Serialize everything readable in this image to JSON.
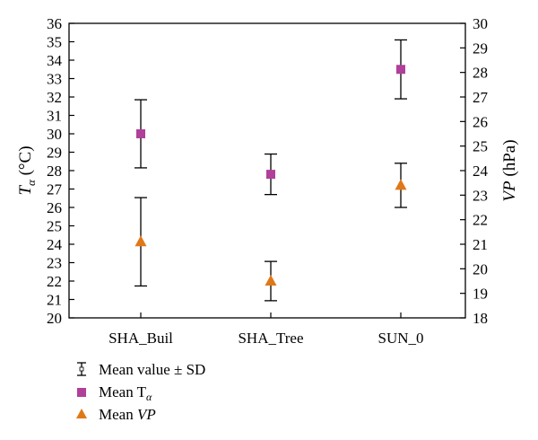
{
  "chart_data": {
    "type": "scatter",
    "categories": [
      "SHA_Buil",
      "SHA_Tree",
      "SUN_0"
    ],
    "left_axis": {
      "label_var": "T",
      "label_sub": "α",
      "label_unit": " (°C)",
      "min": 20,
      "max": 36,
      "step": 1
    },
    "right_axis": {
      "label_var": "VP",
      "label_unit": " (hPa)",
      "min": 18,
      "max": 30,
      "step": 1
    },
    "series": [
      {
        "name": "Mean T",
        "name_sub": "α",
        "axis": "left",
        "marker": "square",
        "color": "#b0409a",
        "values": [
          30.0,
          27.8,
          33.5
        ],
        "sd": [
          1.85,
          1.1,
          1.6
        ]
      },
      {
        "name": "Mean ",
        "name_italic": "VP",
        "axis": "right",
        "marker": "triangle",
        "color": "#e07818",
        "values": [
          21.1,
          19.5,
          23.4
        ],
        "sd": [
          1.8,
          0.8,
          0.9
        ]
      }
    ],
    "legend": {
      "placement": "bottom-left",
      "errorbar_label": "Mean value ± SD"
    }
  }
}
